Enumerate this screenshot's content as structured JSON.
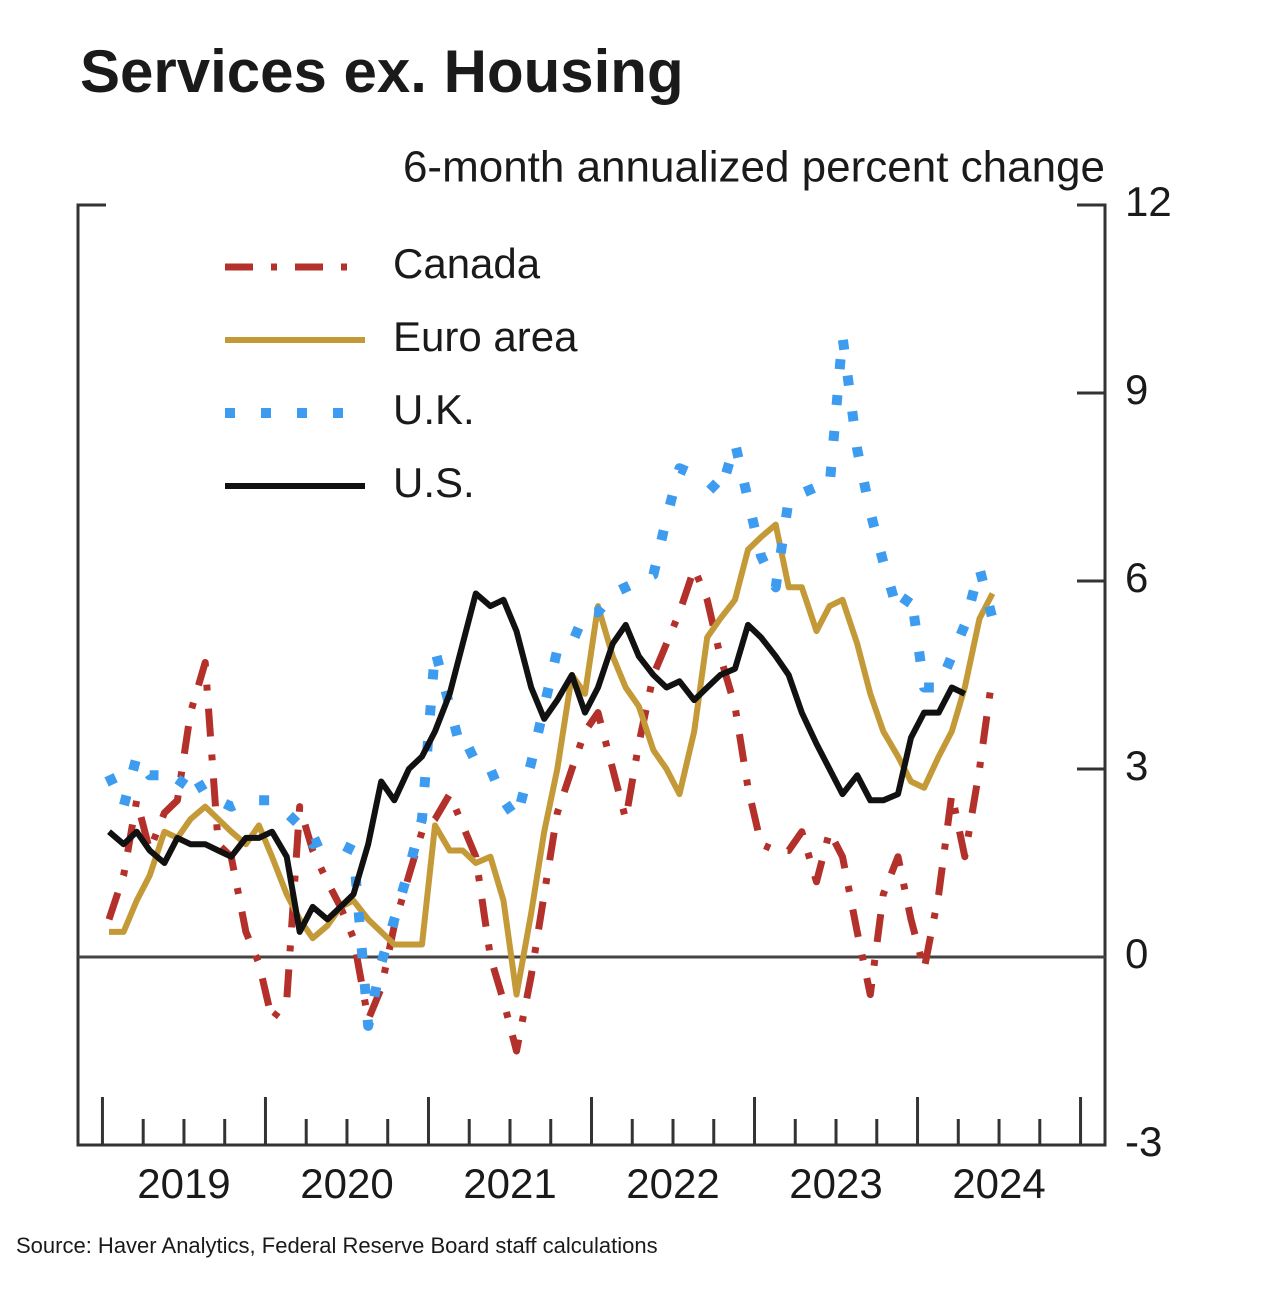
{
  "chart_data": {
    "type": "line",
    "title": "Services ex. Housing",
    "subtitle": "6-month annualized percent change",
    "source": "Source: Haver Analytics, Federal Reserve Board staff calculations",
    "x": [
      2019.04,
      2019.13,
      2019.21,
      2019.29,
      2019.38,
      2019.46,
      2019.54,
      2019.63,
      2019.71,
      2019.79,
      2019.88,
      2019.96,
      2020.04,
      2020.13,
      2020.21,
      2020.29,
      2020.38,
      2020.46,
      2020.54,
      2020.63,
      2020.71,
      2020.79,
      2020.88,
      2020.96,
      2021.04,
      2021.13,
      2021.21,
      2021.29,
      2021.38,
      2021.46,
      2021.54,
      2021.63,
      2021.71,
      2021.79,
      2021.88,
      2021.96,
      2022.04,
      2022.13,
      2022.21,
      2022.29,
      2022.38,
      2022.46,
      2022.54,
      2022.63,
      2022.71,
      2022.79,
      2022.88,
      2022.96,
      2023.04,
      2023.13,
      2023.21,
      2023.29,
      2023.38,
      2023.46,
      2023.54,
      2023.63,
      2023.71,
      2023.79,
      2023.88,
      2023.96,
      2024.04,
      2024.13,
      2024.21,
      2024.29,
      2024.38,
      2024.46
    ],
    "series": [
      {
        "name": "Canada",
        "color": "#b3302b",
        "style": "dashdot",
        "values": [
          0.6,
          1.3,
          2.5,
          1.7,
          2.3,
          2.5,
          3.9,
          4.7,
          1.8,
          1.6,
          0.4,
          -0.1,
          -1.0,
          -0.7,
          2.4,
          1.7,
          1.2,
          0.8,
          0.3,
          -1.0,
          -0.5,
          0.5,
          1.3,
          2.0,
          2.2,
          2.6,
          2.1,
          1.6,
          0.0,
          -0.7,
          -1.5,
          -0.3,
          1.0,
          2.3,
          3.0,
          3.6,
          3.9,
          3.0,
          2.2,
          3.4,
          4.5,
          5.0,
          5.5,
          6.2,
          5.7,
          4.8,
          4.0,
          2.7,
          1.8,
          1.7,
          1.7,
          2.0,
          1.2,
          2.0,
          1.6,
          0.4,
          -0.6,
          1.0,
          1.6,
          0.6,
          -0.2,
          1.0,
          2.6,
          1.6,
          3.0,
          4.5
        ]
      },
      {
        "name": "Euro area",
        "color": "#c49a38",
        "style": "solid",
        "values": [
          0.4,
          0.4,
          0.9,
          1.3,
          2.0,
          1.9,
          2.2,
          2.4,
          2.2,
          2.0,
          1.8,
          2.1,
          1.6,
          1.0,
          0.6,
          0.3,
          0.5,
          0.8,
          0.9,
          0.6,
          0.4,
          0.2,
          0.2,
          0.2,
          2.1,
          1.7,
          1.7,
          1.5,
          1.6,
          0.9,
          -0.6,
          0.7,
          2.0,
          3.0,
          4.5,
          4.2,
          5.6,
          4.8,
          4.3,
          4.0,
          3.3,
          3.0,
          2.6,
          3.6,
          5.1,
          5.4,
          5.7,
          6.5,
          6.7,
          6.9,
          5.9,
          5.9,
          5.2,
          5.6,
          5.7,
          5.0,
          4.2,
          3.6,
          3.2,
          2.8,
          2.7,
          3.2,
          3.6,
          4.3,
          5.4,
          5.8
        ]
      },
      {
        "name": "U.K.",
        "color": "#3d9cf0",
        "style": "dotted",
        "values": [
          2.9,
          2.4,
          3.2,
          2.9,
          2.9,
          2.7,
          3.0,
          2.6,
          2.5,
          2.4,
          2.5,
          2.5,
          2.5,
          2.3,
          2.1,
          1.8,
          1.9,
          1.8,
          1.7,
          -1.1,
          -0.1,
          0.6,
          1.4,
          2.2,
          4.9,
          4.0,
          3.2,
          3.3,
          3.0,
          2.5,
          2.2,
          3.1,
          4.0,
          4.9,
          5.0,
          5.5,
          5.5,
          5.8,
          5.9,
          6.0,
          6.1,
          7.0,
          7.8,
          7.7,
          7.6,
          7.4,
          8.2,
          7.3,
          6.4,
          5.9,
          7.3,
          7.4,
          7.5,
          7.5,
          9.9,
          8.1,
          7.1,
          6.3,
          5.5,
          5.8,
          4.3,
          4.3,
          4.8,
          5.3,
          6.2,
          5.4
        ]
      },
      {
        "name": "U.S.",
        "color": "#111111",
        "style": "solid",
        "values": [
          2.0,
          1.8,
          2.0,
          1.7,
          1.5,
          1.9,
          1.8,
          1.8,
          1.7,
          1.6,
          1.9,
          1.9,
          2.0,
          1.6,
          0.4,
          0.8,
          0.6,
          0.8,
          1.0,
          1.8,
          2.8,
          2.5,
          3.0,
          3.2,
          3.6,
          4.2,
          5.0,
          5.8,
          5.6,
          5.7,
          5.2,
          4.3,
          3.8,
          4.1,
          4.5,
          3.9,
          4.3,
          5.0,
          5.3,
          4.8,
          4.5,
          4.3,
          4.4,
          4.1,
          4.3,
          4.5,
          4.6,
          5.3,
          5.1,
          4.8,
          4.5,
          3.9,
          3.4,
          3.0,
          2.6,
          2.9,
          2.5,
          2.5,
          2.6,
          3.5,
          3.9,
          3.9,
          4.3,
          4.2,
          null,
          null
        ]
      }
    ],
    "xlim": [
      2018.85,
      2025.15
    ],
    "xticks": [
      2019,
      2019.25,
      2019.5,
      2019.75,
      2020,
      2020.25,
      2020.5,
      2020.75,
      2021,
      2021.25,
      2021.5,
      2021.75,
      2022,
      2022.25,
      2022.5,
      2022.75,
      2023,
      2023.25,
      2023.5,
      2023.75,
      2024,
      2024.25,
      2024.5,
      2024.75,
      2025
    ],
    "xlabels": [
      {
        "value": 2019.5,
        "label": "2019"
      },
      {
        "value": 2020.5,
        "label": "2020"
      },
      {
        "value": 2021.5,
        "label": "2021"
      },
      {
        "value": 2022.5,
        "label": "2022"
      },
      {
        "value": 2023.5,
        "label": "2023"
      },
      {
        "value": 2024.5,
        "label": "2024"
      }
    ],
    "ylim": [
      -3,
      12
    ],
    "yticks": [
      -3,
      0,
      3,
      6,
      9,
      12
    ],
    "legend": "upper left"
  }
}
